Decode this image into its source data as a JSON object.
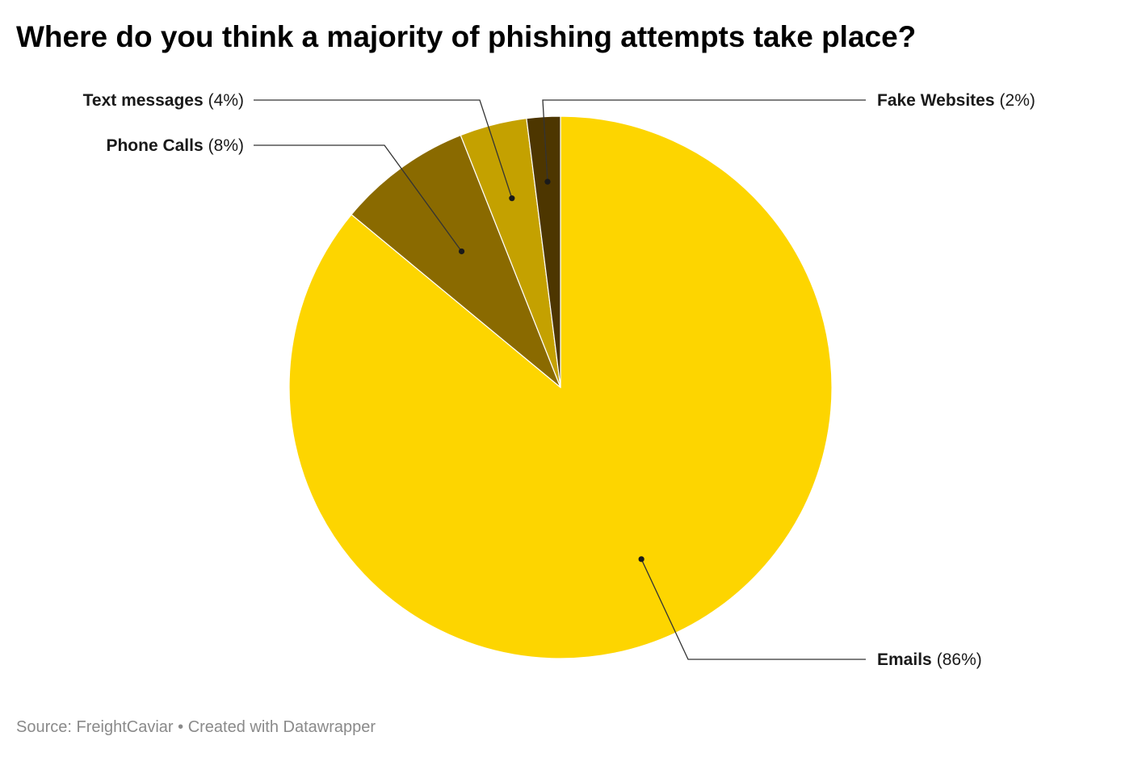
{
  "title": "Where do you think a majority of phishing attempts take place?",
  "footer": {
    "source_label": "Source:",
    "source_name": "FreightCaviar",
    "separator": "•",
    "credit": "Created with Datawrapper"
  },
  "chart_data": {
    "type": "pie",
    "title": "Where do you think a majority of phishing attempts take place?",
    "start": "12 o'clock",
    "direction": "clockwise",
    "slices": [
      {
        "label": "Emails",
        "value": 86,
        "value_text": "(86%)",
        "color": "#FDD500"
      },
      {
        "label": "Phone Calls",
        "value": 8,
        "value_text": "(8%)",
        "color": "#8A6A00"
      },
      {
        "label": "Text messages",
        "value": 4,
        "value_text": "(4%)",
        "color": "#C4A100"
      },
      {
        "label": "Fake Websites",
        "value": 2,
        "value_text": "(2%)",
        "color": "#4D3600"
      }
    ]
  }
}
